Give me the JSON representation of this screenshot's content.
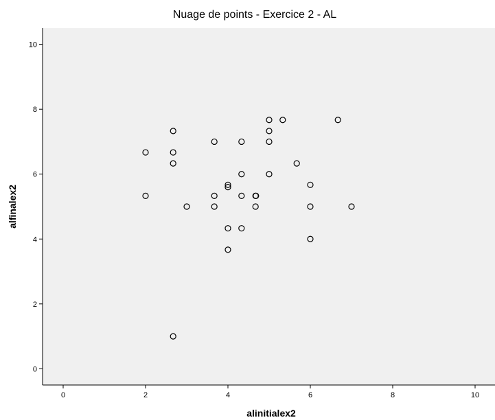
{
  "chart_data": {
    "type": "scatter",
    "title": "Nuage de points - Exercice 2 - AL",
    "xlabel": "alinitialex2",
    "ylabel": "alfinalex2",
    "xlim": [
      -0.5,
      10.5
    ],
    "ylim": [
      -0.5,
      10.5
    ],
    "xticks": [
      0,
      2,
      4,
      6,
      8,
      10
    ],
    "yticks": [
      0,
      2,
      4,
      6,
      8,
      10
    ],
    "grid": false,
    "plot_background": "#f0f0f0",
    "marker_color": "#000000",
    "points": [
      {
        "x": 2.0,
        "y": 6.67
      },
      {
        "x": 2.0,
        "y": 5.33
      },
      {
        "x": 2.67,
        "y": 7.33
      },
      {
        "x": 2.67,
        "y": 6.67
      },
      {
        "x": 2.67,
        "y": 6.33
      },
      {
        "x": 2.67,
        "y": 1.0
      },
      {
        "x": 3.0,
        "y": 5.0
      },
      {
        "x": 3.67,
        "y": 7.0
      },
      {
        "x": 3.67,
        "y": 5.33
      },
      {
        "x": 3.67,
        "y": 5.0
      },
      {
        "x": 4.0,
        "y": 5.67
      },
      {
        "x": 4.0,
        "y": 5.6
      },
      {
        "x": 4.0,
        "y": 4.33
      },
      {
        "x": 4.0,
        "y": 3.67
      },
      {
        "x": 4.33,
        "y": 7.0
      },
      {
        "x": 4.33,
        "y": 6.0
      },
      {
        "x": 4.33,
        "y": 5.33
      },
      {
        "x": 4.33,
        "y": 4.33
      },
      {
        "x": 4.67,
        "y": 5.33
      },
      {
        "x": 4.68,
        "y": 5.33
      },
      {
        "x": 4.67,
        "y": 5.0
      },
      {
        "x": 5.0,
        "y": 7.67
      },
      {
        "x": 5.0,
        "y": 7.33
      },
      {
        "x": 5.0,
        "y": 7.0
      },
      {
        "x": 5.0,
        "y": 6.0
      },
      {
        "x": 5.33,
        "y": 7.67
      },
      {
        "x": 5.67,
        "y": 6.33
      },
      {
        "x": 6.0,
        "y": 5.67
      },
      {
        "x": 6.0,
        "y": 5.0
      },
      {
        "x": 6.0,
        "y": 4.0
      },
      {
        "x": 6.67,
        "y": 7.67
      },
      {
        "x": 7.0,
        "y": 5.0
      }
    ]
  }
}
